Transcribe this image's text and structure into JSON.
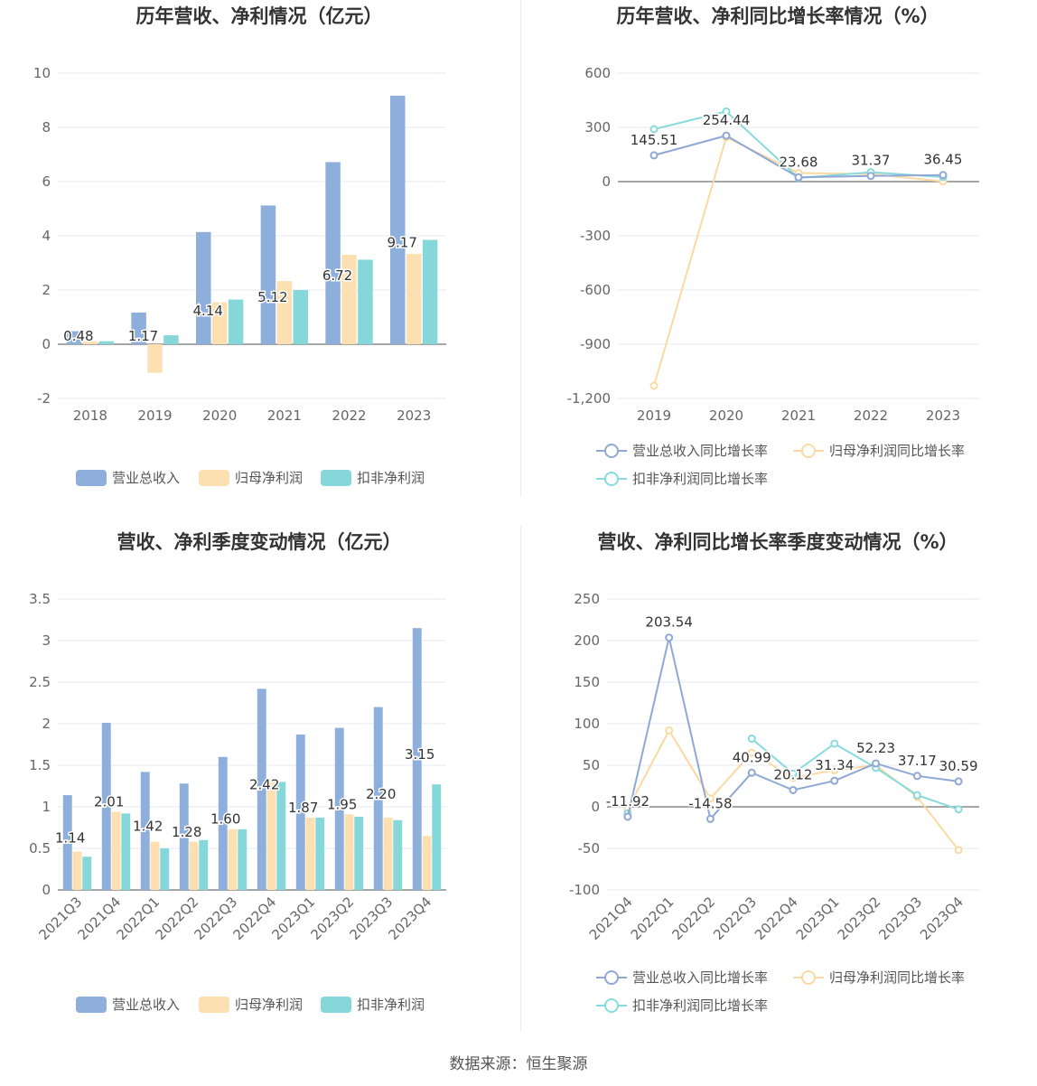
{
  "source": "数据来源：恒生聚源",
  "colors": {
    "revenue": "#8eaedc",
    "net_profit": "#fde0b1",
    "deducted_profit": "#85d7da",
    "revenue_line": "#8fa8d6",
    "net_line": "#fcd9a2",
    "deducted_line": "#88dbdd"
  },
  "legends": {
    "bars": [
      "营业总收入",
      "归母净利润",
      "扣非净利润"
    ],
    "lines": [
      "营业总收入同比增长率",
      "归母净利润同比增长率",
      "扣非净利润同比增长率"
    ]
  },
  "chart_data": [
    {
      "type": "bar",
      "title": "历年营收、净利情况（亿元）",
      "categories": [
        "2018",
        "2019",
        "2020",
        "2021",
        "2022",
        "2023"
      ],
      "series": [
        {
          "name": "营业总收入",
          "values": [
            0.48,
            1.17,
            4.14,
            5.12,
            6.72,
            9.17
          ]
        },
        {
          "name": "归母净利润",
          "values": [
            0.1,
            -1.05,
            1.55,
            2.33,
            3.3,
            3.33
          ]
        },
        {
          "name": "扣非净利润",
          "values": [
            0.11,
            0.33,
            1.65,
            2.0,
            3.12,
            3.85
          ]
        }
      ],
      "labels": [
        "0.48",
        "1.17",
        "4.14",
        "5.12",
        "6.72",
        "9.17"
      ],
      "ylim": [
        -2,
        10
      ],
      "yticks": [
        -2,
        0,
        2,
        4,
        6,
        8,
        10
      ],
      "ytick_labels": [
        "-2",
        "0",
        "2",
        "4",
        "6",
        "8",
        "10"
      ],
      "grid": true,
      "legend": "bottom"
    },
    {
      "type": "line",
      "title": "历年营收、净利同比增长率情况（%）",
      "categories": [
        "2019",
        "2020",
        "2021",
        "2022",
        "2023"
      ],
      "series": [
        {
          "name": "营业总收入同比增长率",
          "values": [
            145.51,
            254.44,
            23.68,
            31.37,
            36.45
          ]
        },
        {
          "name": "归母净利润同比增长率",
          "values": [
            -1130,
            246,
            47,
            42,
            1
          ]
        },
        {
          "name": "扣非净利润同比增长率",
          "values": [
            290,
            388,
            20,
            52,
            25
          ]
        }
      ],
      "labels": [
        "145.51",
        "254.44",
        "23.68",
        "31.37",
        "36.45"
      ],
      "ylim": [
        -1200,
        600
      ],
      "yticks": [
        -1200,
        -900,
        -600,
        -300,
        0,
        300,
        600
      ],
      "ytick_labels": [
        "-1,200",
        "-900",
        "-600",
        "-300",
        "0",
        "300",
        "600"
      ],
      "grid": true,
      "legend": "bottom"
    },
    {
      "type": "bar",
      "title": "营收、净利季度变动情况（亿元）",
      "categories": [
        "2021Q3",
        "2021Q4",
        "2022Q1",
        "2022Q2",
        "2022Q3",
        "2022Q4",
        "2023Q1",
        "2023Q2",
        "2023Q3",
        "2023Q4"
      ],
      "series": [
        {
          "name": "营业总收入",
          "values": [
            1.14,
            2.01,
            1.42,
            1.28,
            1.6,
            2.42,
            1.87,
            1.95,
            2.2,
            3.15
          ]
        },
        {
          "name": "归母净利润",
          "values": [
            0.46,
            0.94,
            0.58,
            0.58,
            0.73,
            1.33,
            0.87,
            0.91,
            0.87,
            0.65
          ]
        },
        {
          "name": "扣非净利润",
          "values": [
            0.4,
            0.92,
            0.5,
            0.6,
            0.73,
            1.3,
            0.87,
            0.88,
            0.84,
            1.27
          ]
        }
      ],
      "labels": [
        "1.14",
        "2.01",
        "1.42",
        "1.28",
        "1.60",
        "2.42",
        "1.87",
        "1.95",
        "2.20",
        "3.15"
      ],
      "ylim": [
        0,
        3.5
      ],
      "yticks": [
        0,
        0.5,
        1,
        1.5,
        2,
        2.5,
        3,
        3.5
      ],
      "ytick_labels": [
        "0",
        "0.5",
        "1",
        "1.5",
        "2",
        "2.5",
        "3",
        "3.5"
      ],
      "grid": true,
      "legend": "bottom"
    },
    {
      "type": "line",
      "title": "营收、净利同比增长率季度变动情况（%）",
      "categories": [
        "2021Q4",
        "2022Q1",
        "2022Q2",
        "2022Q3",
        "2022Q4",
        "2023Q1",
        "2023Q2",
        "2023Q3",
        "2023Q4"
      ],
      "series": [
        {
          "name": "营业总收入同比增长率",
          "values": [
            -11.92,
            203.54,
            -14.58,
            40.99,
            20.12,
            31.34,
            52.23,
            37.17,
            30.59
          ]
        },
        {
          "name": "归母净利润同比增长率",
          "values": [
            -3,
            92,
            10,
            65,
            35,
            44,
            50,
            12,
            -52
          ]
        },
        {
          "name": "扣非净利润同比增长率",
          "values": [
            -8,
            null,
            null,
            82,
            40,
            76,
            47,
            14,
            -3
          ]
        }
      ],
      "labels": [
        "-11.92",
        "203.54",
        "-14.58",
        "40.99",
        "20.12",
        "31.34",
        "52.23",
        "37.17",
        "30.59"
      ],
      "ylim": [
        -100,
        250
      ],
      "yticks": [
        -100,
        -50,
        0,
        50,
        100,
        150,
        200,
        250
      ],
      "ytick_labels": [
        "-100",
        "-50",
        "0",
        "50",
        "100",
        "150",
        "200",
        "250"
      ],
      "grid": true,
      "legend": "bottom"
    }
  ]
}
